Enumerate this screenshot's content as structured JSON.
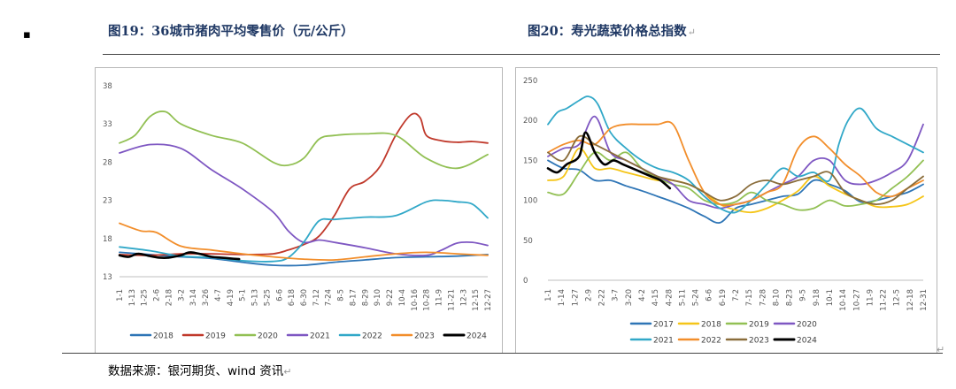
{
  "header": {
    "bullet": "▪",
    "fig19_title": "图19：36城市猪肉平均零售价（元/公斤）",
    "fig20_title": "图20：寿光蔬菜价格总指数",
    "fig20_mark": "↵"
  },
  "footer": {
    "source_text": "数据来源：银河期货、wind 资讯",
    "source_mark": "↵",
    "corner_mark": "↵"
  },
  "chart_data": [
    {
      "type": "line",
      "title": "",
      "xlabel": "",
      "ylabel": "",
      "ylim": [
        13,
        38
      ],
      "yticks": [
        "13",
        "18",
        "23",
        "28",
        "33",
        "38"
      ],
      "categories": [
        "1-1",
        "1-13",
        "1-25",
        "2-6",
        "2-18",
        "3-2",
        "3-14",
        "3-26",
        "4-7",
        "4-19",
        "5-1",
        "5-13",
        "5-25",
        "6-6",
        "6-18",
        "6-30",
        "7-12",
        "7-24",
        "8-5",
        "8-17",
        "8-29",
        "9-10",
        "9-22",
        "10-4",
        "10-16",
        "10-28",
        "11-9",
        "11-21",
        "12-3",
        "12-15",
        "12-27"
      ],
      "grid": false,
      "legend": "bottom",
      "series": [
        {
          "name": "2018",
          "color": "#2e75b6",
          "x": [
            0,
            1,
            2,
            3,
            4,
            5,
            6,
            7,
            8,
            9,
            10,
            11,
            12
          ],
          "values": [
            16.2,
            15.9,
            15.6,
            15.4,
            14.9,
            14.5,
            14.5,
            14.9,
            15.2,
            15.5,
            15.6,
            15.7,
            15.9
          ]
        },
        {
          "name": "2019",
          "color": "#c0392b",
          "x": [
            0,
            1,
            2,
            3,
            4,
            5,
            5.5,
            6,
            6.5,
            7,
            7.5,
            8,
            8.5,
            9,
            9.5,
            9.8,
            10,
            10.5,
            11,
            11.5,
            12
          ],
          "values": [
            15.9,
            15.8,
            16.0,
            16.0,
            15.9,
            16.0,
            16.5,
            17.2,
            18.3,
            21.0,
            24.5,
            25.5,
            27.5,
            31.5,
            34.2,
            33.8,
            31.5,
            30.8,
            30.6,
            30.7,
            30.5
          ]
        },
        {
          "name": "2020",
          "color": "#92c054",
          "x": [
            0,
            0.5,
            1,
            1.5,
            2,
            3,
            4,
            5,
            5.5,
            6,
            6.5,
            7,
            8,
            9,
            10,
            11,
            12
          ],
          "values": [
            30.5,
            31.5,
            34.0,
            34.6,
            33.0,
            31.5,
            30.5,
            28.0,
            27.6,
            28.5,
            31.0,
            31.5,
            31.7,
            31.5,
            28.5,
            27.2,
            29.0
          ]
        },
        {
          "name": "2021",
          "color": "#7e57c2",
          "x": [
            0,
            1,
            2,
            3,
            4,
            5,
            5.5,
            6,
            6.5,
            7,
            8,
            9,
            10,
            10.5,
            11,
            11.5,
            12
          ],
          "values": [
            29.2,
            30.3,
            29.8,
            27.0,
            24.5,
            21.5,
            19.0,
            17.5,
            17.8,
            17.5,
            16.8,
            16.0,
            15.8,
            16.5,
            17.4,
            17.5,
            17.1
          ]
        },
        {
          "name": "2022",
          "color": "#31a8c8",
          "x": [
            0,
            1,
            2,
            3,
            4,
            5,
            5.5,
            6,
            6.5,
            7,
            8,
            9,
            10,
            10.5,
            11,
            11.5,
            12
          ],
          "values": [
            16.9,
            16.4,
            15.7,
            15.5,
            15.1,
            15.0,
            15.5,
            17.5,
            20.3,
            20.5,
            20.8,
            21.0,
            22.8,
            23.0,
            22.8,
            22.5,
            20.7
          ]
        },
        {
          "name": "2023",
          "color": "#f28e2b",
          "x": [
            0,
            0.7,
            1.2,
            2,
            3,
            4,
            5,
            6,
            7,
            8,
            9,
            10,
            11,
            12
          ],
          "values": [
            20.0,
            19.0,
            18.8,
            17.0,
            16.5,
            16.0,
            15.6,
            15.3,
            15.2,
            15.6,
            16.0,
            16.2,
            16.0,
            15.8
          ]
        },
        {
          "name": "2024",
          "color": "#000000",
          "x": [
            0,
            0.3,
            0.6,
            1,
            1.3,
            1.6,
            2,
            2.3,
            2.7,
            3,
            3.3,
            3.6,
            3.9
          ],
          "values": [
            15.8,
            15.6,
            16.0,
            15.7,
            15.5,
            15.5,
            15.8,
            16.2,
            15.9,
            15.6,
            15.5,
            15.4,
            15.3
          ]
        }
      ]
    },
    {
      "type": "line",
      "title": "",
      "xlabel": "",
      "ylabel": "",
      "ylim": [
        0,
        250
      ],
      "yticks": [
        "0",
        "50",
        "100",
        "150",
        "200",
        "250"
      ],
      "categories": [
        "1-1",
        "1-14",
        "1-27",
        "2-9",
        "2-22",
        "3-7",
        "3-20",
        "4-2",
        "4-15",
        "4-28",
        "5-11",
        "5-24",
        "6-6",
        "6-19",
        "7-2",
        "7-15",
        "7-28",
        "8-10",
        "8-23",
        "9-5",
        "9-18",
        "10-1",
        "10-14",
        "10-27",
        "11-9",
        "11-22",
        "12-5",
        "12-18",
        "12-31"
      ],
      "grid": false,
      "legend": "bottom",
      "series": [
        {
          "name": "2017",
          "color": "#2e75b6",
          "x": [
            0,
            0.5,
            1,
            1.5,
            2,
            2.5,
            3,
            3.5,
            4,
            4.5,
            5,
            5.5,
            6,
            6.5,
            7,
            7.5,
            8,
            8.5,
            9,
            9.5,
            10,
            10.5,
            11,
            11.5,
            12
          ],
          "values": [
            150,
            140,
            138,
            125,
            125,
            118,
            112,
            105,
            98,
            90,
            80,
            72,
            90,
            95,
            100,
            105,
            108,
            125,
            120,
            112,
            98,
            100,
            105,
            110,
            120
          ]
        },
        {
          "name": "2018",
          "color": "#f5c518",
          "x": [
            0,
            0.5,
            1,
            1.5,
            2,
            2.5,
            3,
            3.5,
            4,
            4.5,
            5,
            5.5,
            6,
            6.5,
            7,
            7.5,
            8,
            8.5,
            9,
            9.5,
            10,
            10.5,
            11,
            11.5,
            12
          ],
          "values": [
            125,
            130,
            165,
            140,
            140,
            135,
            130,
            125,
            125,
            120,
            110,
            95,
            88,
            85,
            90,
            100,
            112,
            130,
            118,
            108,
            100,
            92,
            92,
            95,
            105
          ]
        },
        {
          "name": "2019",
          "color": "#92c054",
          "x": [
            0,
            0.5,
            1,
            1.5,
            2,
            2.5,
            3,
            3.5,
            4,
            4.5,
            5,
            5.5,
            6,
            6.5,
            7,
            7.5,
            8,
            8.5,
            9,
            9.5,
            10,
            10.5,
            11,
            11.5,
            12
          ],
          "values": [
            110,
            108,
            135,
            160,
            150,
            160,
            140,
            128,
            120,
            115,
            100,
            95,
            98,
            110,
            100,
            95,
            88,
            90,
            100,
            93,
            95,
            100,
            115,
            130,
            150
          ]
        },
        {
          "name": "2020",
          "color": "#7e57c2",
          "x": [
            0,
            0.5,
            1,
            1.5,
            2,
            2.5,
            3,
            3.5,
            4,
            4.5,
            5,
            5.5,
            6,
            6.5,
            7,
            7.5,
            8,
            8.5,
            9,
            9.5,
            10,
            10.5,
            11,
            11.5,
            12
          ],
          "values": [
            155,
            165,
            170,
            205,
            160,
            150,
            140,
            130,
            120,
            100,
            95,
            90,
            95,
            100,
            110,
            120,
            130,
            150,
            150,
            125,
            120,
            125,
            135,
            150,
            195
          ]
        },
        {
          "name": "2021",
          "color": "#31a8c8",
          "x": [
            0,
            0.3,
            0.6,
            1,
            1.3,
            1.6,
            2,
            2.5,
            3,
            3.5,
            4,
            4.5,
            5,
            5.5,
            6,
            6.5,
            7,
            7.5,
            8,
            8.5,
            9,
            9.3,
            9.6,
            10,
            10.5,
            11,
            11.5,
            12
          ],
          "values": [
            195,
            210,
            215,
            225,
            230,
            220,
            185,
            165,
            150,
            140,
            135,
            125,
            105,
            90,
            85,
            100,
            120,
            140,
            130,
            135,
            125,
            170,
            200,
            215,
            190,
            180,
            170,
            160
          ]
        },
        {
          "name": "2022",
          "color": "#f28e2b",
          "x": [
            0,
            0.5,
            1,
            1.5,
            2,
            2.5,
            3,
            3.5,
            4,
            4.5,
            5,
            5.5,
            6,
            6.5,
            7,
            7.5,
            8,
            8.5,
            9,
            9.5,
            10,
            10.5,
            11,
            11.5,
            12
          ],
          "values": [
            160,
            170,
            175,
            170,
            190,
            195,
            195,
            195,
            195,
            150,
            110,
            95,
            95,
            100,
            110,
            120,
            165,
            180,
            165,
            145,
            130,
            110,
            105,
            115,
            125
          ]
        },
        {
          "name": "2023",
          "color": "#8a6d3b",
          "x": [
            0,
            0.5,
            1,
            1.5,
            2,
            2.5,
            3,
            3.5,
            4,
            4.5,
            5,
            5.5,
            6,
            6.5,
            7,
            7.5,
            8,
            8.5,
            9,
            9.5,
            10,
            10.5,
            11,
            11.5,
            12
          ],
          "values": [
            160,
            150,
            180,
            170,
            160,
            150,
            140,
            130,
            125,
            120,
            110,
            100,
            105,
            120,
            125,
            120,
            125,
            130,
            135,
            110,
            100,
            95,
            100,
            115,
            130
          ]
        },
        {
          "name": "2024",
          "color": "#000000",
          "x": [
            0,
            0.3,
            0.6,
            1,
            1.2,
            1.5,
            1.8,
            2.1,
            2.4,
            2.7,
            3,
            3.3,
            3.6,
            3.9
          ],
          "values": [
            140,
            135,
            145,
            155,
            185,
            160,
            145,
            150,
            145,
            140,
            135,
            130,
            125,
            115
          ]
        }
      ]
    }
  ]
}
